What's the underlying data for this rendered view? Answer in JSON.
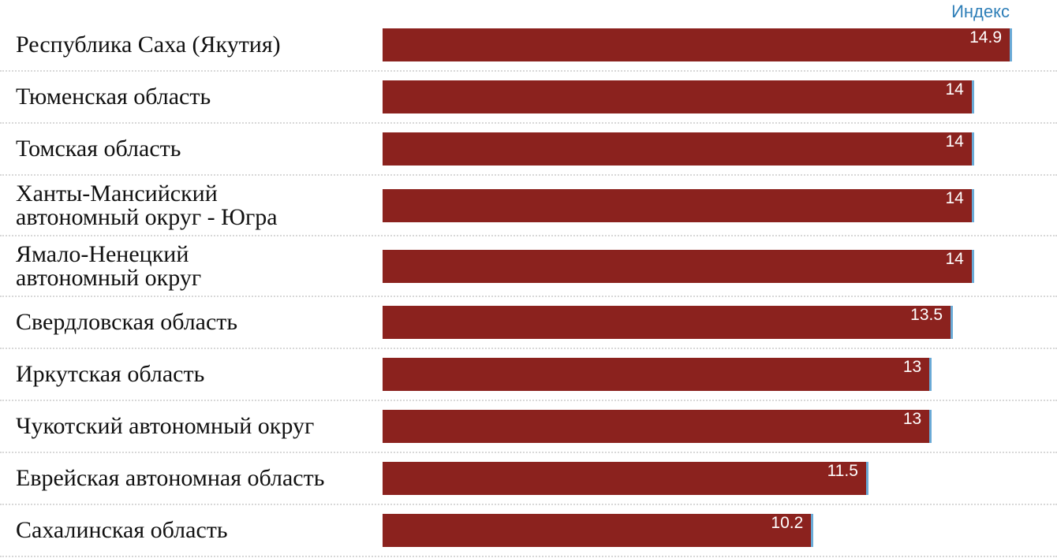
{
  "chart_data": {
    "type": "bar",
    "orientation": "horizontal",
    "categories": [
      "Республика Саха (Якутия)",
      "Тюменская область",
      "Томская область",
      "Ханты-Мансийский\nавтономный округ - Югра",
      "Ямало-Ненецкий\nавтономный округ",
      "Свердловская область",
      "Иркутская область",
      "Чукотский автономный округ",
      "Еврейская автономная область",
      "Сахалинская область"
    ],
    "series": [
      {
        "name": "Индекс",
        "color": "#8b221e",
        "values": [
          14.9,
          14,
          14,
          14,
          14,
          13.5,
          13,
          13,
          11.5,
          10.2
        ]
      }
    ]
  }
}
